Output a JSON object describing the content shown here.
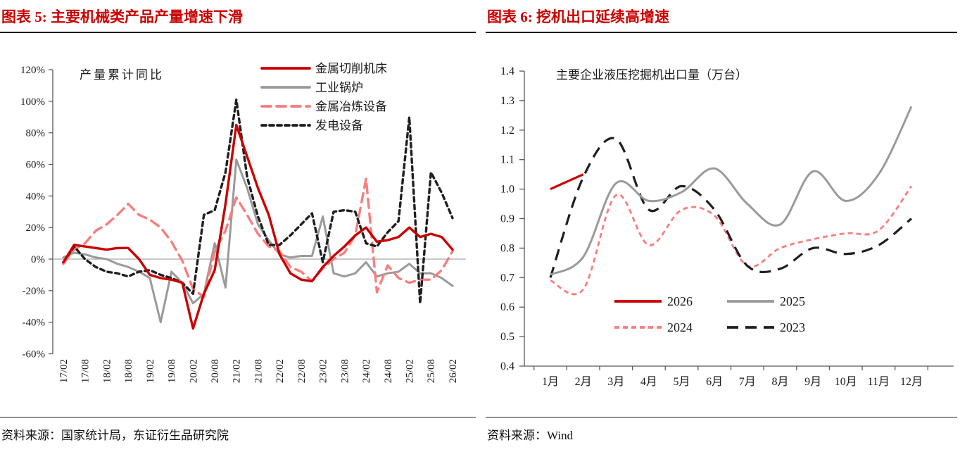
{
  "figure5": {
    "title": "图表 5: 主要机械类产品产量增速下滑",
    "source": "资料来源：国家统计局，东证衍生品研究院"
  },
  "figure6": {
    "title": "图表 6: 挖机出口延续高增速",
    "source": "资料来源：Wind"
  },
  "colors": {
    "title_red": "#cc0000",
    "axis": "#595959",
    "zero_line": "#a6a6a6",
    "rule_dark": "#1a1a1a",
    "series_red": "#c90000",
    "series_gray": "#9a9a9a",
    "series_pink": "#fa7d7d",
    "series_black": "#1f1f1f"
  },
  "chart_data": [
    {
      "id": "chart5",
      "type": "line",
      "inner_title": "产量累计同比",
      "legend_position": "top-right",
      "grid": false,
      "zero_line": true,
      "ylim": [
        -60,
        120
      ],
      "y_tick_labels": [
        "120%",
        "100%",
        "80%",
        "60%",
        "40%",
        "20%",
        "0%",
        "-20%",
        "-40%",
        "-60%"
      ],
      "x_tick_labels": [
        "17/02",
        "17/08",
        "18/02",
        "18/08",
        "19/02",
        "19/08",
        "20/02",
        "20/08",
        "21/02",
        "21/08",
        "22/02",
        "22/08",
        "23/02",
        "23/08",
        "24/02",
        "24/08",
        "25/02",
        "25/08",
        "26/02"
      ],
      "x_dates": [
        "17/02",
        "17/05",
        "17/08",
        "17/11",
        "18/02",
        "18/05",
        "18/08",
        "18/11",
        "19/02",
        "19/05",
        "19/08",
        "19/11",
        "20/02",
        "20/05",
        "20/08",
        "20/11",
        "21/02",
        "21/05",
        "21/08",
        "21/11",
        "22/02",
        "22/05",
        "22/08",
        "22/11",
        "23/02",
        "23/05",
        "23/08",
        "23/11",
        "24/02",
        "24/05",
        "24/08",
        "24/11",
        "25/02",
        "25/05",
        "25/08",
        "25/11",
        "26/02"
      ],
      "unit": "percent",
      "series": [
        {
          "name": "金属切削机床",
          "color": "#c90000",
          "dash": "solid",
          "width": 3.4,
          "values": [
            -2,
            9,
            8,
            7,
            6,
            7,
            7,
            0,
            -10,
            -12,
            -13,
            -15,
            -44,
            -22,
            -7,
            35,
            85,
            65,
            45,
            28,
            3,
            -9,
            -13,
            -14,
            -5,
            2,
            8,
            15,
            20,
            11,
            12,
            14,
            20,
            14,
            16,
            14,
            6
          ]
        },
        {
          "name": "工业锅炉",
          "color": "#9a9a9a",
          "dash": "solid",
          "width": 3,
          "values": [
            1,
            4,
            3,
            1,
            0,
            -3,
            -5,
            -8,
            -12,
            -40,
            -8,
            -15,
            -28,
            -22,
            10,
            -18,
            63,
            45,
            22,
            12,
            3,
            1,
            2,
            2,
            27,
            -9,
            -11,
            -9,
            -2,
            -11,
            -9,
            -8,
            -3,
            -9,
            -9,
            -12,
            -17
          ]
        },
        {
          "name": "金属冶炼设备",
          "color": "#fa7d7d",
          "dash": "13 8",
          "width": 3.4,
          "values": [
            -3,
            6,
            10,
            18,
            22,
            28,
            35,
            28,
            25,
            20,
            11,
            -1,
            -19,
            -24,
            5,
            18,
            39,
            28,
            16,
            8,
            5,
            -5,
            -8,
            -14,
            -6,
            0,
            4,
            15,
            51,
            -21,
            -4,
            -12,
            -15,
            -13,
            -13,
            -7,
            5
          ]
        },
        {
          "name": "发电设备",
          "color": "#1f1f1f",
          "dash": "6 5",
          "width": 3.4,
          "values": [
            -2,
            8,
            0,
            -5,
            -8,
            -9,
            -11,
            -8,
            -7,
            -10,
            -12,
            -15,
            -22,
            28,
            31,
            55,
            101,
            52,
            27,
            9,
            9,
            15,
            22,
            29,
            -2,
            30,
            31,
            30,
            10,
            8,
            17,
            24,
            90,
            -28,
            55,
            42,
            26
          ]
        }
      ]
    },
    {
      "id": "chart6",
      "type": "line",
      "inner_title": "主要企业液压挖掘机出口量（万台）",
      "legend_position": "bottom-center",
      "grid": false,
      "smooth": true,
      "ylim": [
        0.4,
        1.4
      ],
      "y_tick_labels": [
        "1.4",
        "1.3",
        "1.2",
        "1.1",
        "1.0",
        "0.9",
        "0.8",
        "0.7",
        "0.6",
        "0.5",
        "0.4"
      ],
      "x_tick_labels": [
        "1月",
        "2月",
        "3月",
        "4月",
        "5月",
        "6月",
        "7月",
        "8月",
        "9月",
        "10月",
        "11月",
        "12月"
      ],
      "unit": "万台",
      "series": [
        {
          "name": "2026",
          "color": "#c90000",
          "dash": "solid",
          "width": 3.2,
          "values": [
            1.0,
            1.05
          ]
        },
        {
          "name": "2025",
          "color": "#9a9a9a",
          "dash": "solid",
          "width": 3,
          "values": [
            0.71,
            0.77,
            1.02,
            0.96,
            0.99,
            1.07,
            0.95,
            0.88,
            1.06,
            0.96,
            1.05,
            1.28
          ]
        },
        {
          "name": "2024",
          "color": "#fa7d7d",
          "dash": "7 5",
          "width": 2.8,
          "values": [
            0.69,
            0.66,
            0.98,
            0.81,
            0.93,
            0.91,
            0.74,
            0.8,
            0.83,
            0.85,
            0.86,
            1.01
          ]
        },
        {
          "name": "2023",
          "color": "#1f1f1f",
          "dash": "16 10",
          "width": 3.2,
          "values": [
            0.7,
            1.04,
            1.17,
            0.93,
            1.01,
            0.93,
            0.74,
            0.73,
            0.8,
            0.78,
            0.81,
            0.9
          ]
        }
      ]
    }
  ]
}
